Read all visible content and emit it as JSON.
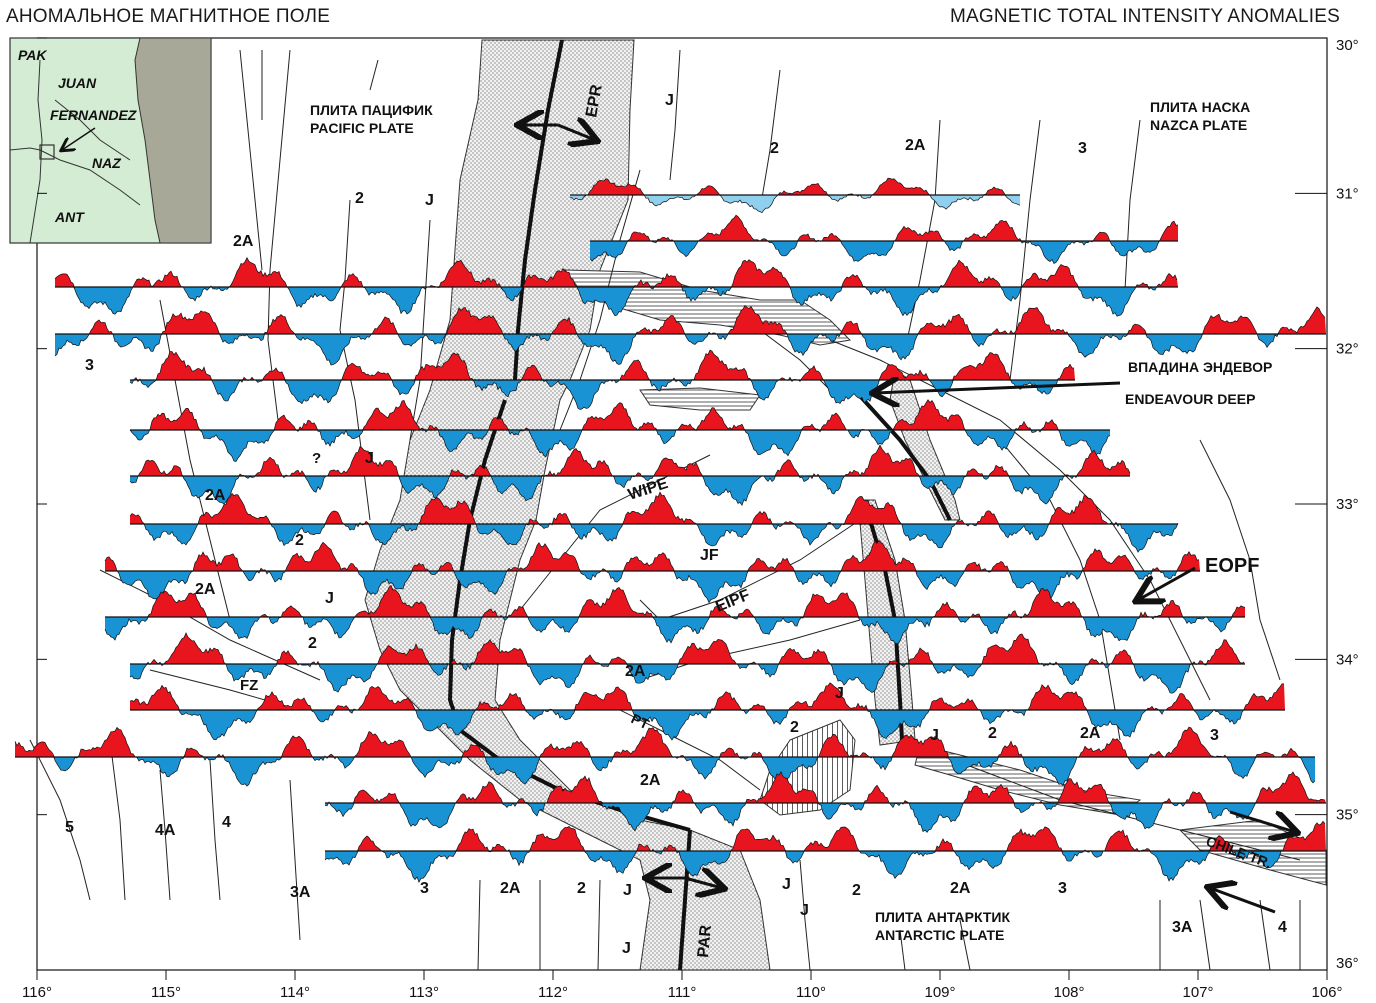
{
  "header": {
    "title_ru": "АНОМАЛЬНОЕ МАГНИТНОЕ ПОЛЕ",
    "title_en": "MAGNETIC TOTAL INTENSITY ANOMALIES"
  },
  "axes": {
    "lon_ticks": [
      "116°",
      "115°",
      "114°",
      "113°",
      "112°",
      "111°",
      "110°",
      "109°",
      "108°",
      "107°",
      "106°"
    ],
    "lat_ticks": [
      "30°",
      "31°",
      "32°",
      "33°",
      "34°",
      "35°",
      "36°"
    ]
  },
  "inset": {
    "labels": [
      "PAK",
      "JUAN",
      "FERNANDEZ",
      "NAZ",
      "ANT"
    ]
  },
  "plates": {
    "pacific_ru": "ПЛИТА ПАЦИФИК",
    "pacific_en": "PACIFIC PLATE",
    "nazca_ru": "ПЛИТА НАСКА",
    "nazca_en": "NAZCA PLATE",
    "antarctic_ru": "ПЛИТА АНТАРКТИК",
    "antarctic_en": "ANTARCTIC PLATE"
  },
  "features": {
    "epr": "EPR",
    "par": "PAR",
    "wipe": "WIPE",
    "jf": "JF",
    "eipf": "EIPF",
    "eopf": "EOPF",
    "fz": "FZ",
    "pt": "PT",
    "chile_tr": "CHILE TR.",
    "endeavour_ru": "ВПАДИНА ЭНДЕВОР",
    "endeavour_en": "ENDEAVOUR DEEP",
    "question": "?"
  },
  "anomaly_labels": [
    "J",
    "2",
    "2A",
    "3",
    "3A",
    "4",
    "4A",
    "5"
  ],
  "colors": {
    "positive_anomaly": "#e8141e",
    "negative_anomaly": "#1a93d4",
    "weak_negative": "#8ed0ee",
    "inset_bg": "#d4ebd4",
    "inset_land": "#a8a898",
    "line": "#111111"
  }
}
